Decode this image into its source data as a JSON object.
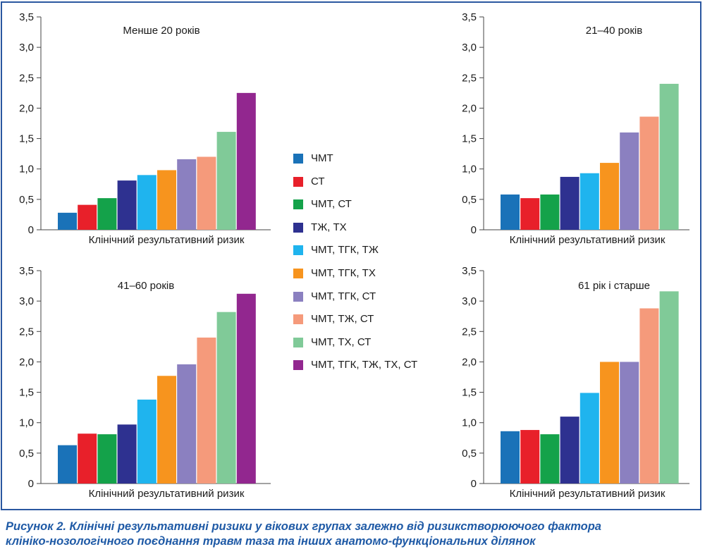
{
  "colors": {
    "frame": "#2a57a0",
    "caption": "#1f5aa6",
    "series": [
      "#1a72b8",
      "#e8202a",
      "#14a24a",
      "#2e3190",
      "#1fb4ee",
      "#f7941e",
      "#8b80c0",
      "#f59a7b",
      "#80ca98",
      "#92278f"
    ]
  },
  "legend": [
    "ЧМТ",
    "СТ",
    "ЧМТ, СТ",
    "ТЖ, ТХ",
    "ЧМТ, ТГК, ТЖ",
    "ЧМТ, ТГК, ТХ",
    "ЧМТ, ТГК, СТ",
    "ЧМТ, ТЖ, СТ",
    "ЧМТ, ТХ, СТ",
    "ЧМТ, ТГК, ТЖ, ТХ, СТ"
  ],
  "chart_data": [
    {
      "type": "bar",
      "title": "Менше 20 років",
      "xlabel": "Клінічний результативний ризик",
      "ylabel": "",
      "ylim": [
        0,
        3.5
      ],
      "yticks": [
        "0",
        "0,5",
        "1,0",
        "1,5",
        "2,0",
        "2,5",
        "3,0",
        "3,5"
      ],
      "grid": false,
      "values": [
        0.28,
        0.41,
        0.52,
        0.81,
        0.9,
        0.98,
        1.16,
        1.2,
        1.61,
        2.25
      ]
    },
    {
      "type": "bar",
      "title": "21–40 років",
      "xlabel": "Клінічний результативний ризик",
      "ylabel": "",
      "ylim": [
        0,
        3.5
      ],
      "yticks": [
        "0",
        "0,5",
        "1,0",
        "1,5",
        "2,0",
        "2,5",
        "3,0",
        "3,5"
      ],
      "grid": false,
      "values": [
        0.58,
        0.52,
        0.58,
        0.87,
        0.93,
        1.1,
        1.6,
        1.86,
        2.4
      ]
    },
    {
      "type": "bar",
      "title": "41–60 років",
      "xlabel": "Клінічний результативний ризик",
      "ylabel": "",
      "ylim": [
        0,
        3.5
      ],
      "yticks": [
        "0",
        "0,5",
        "1,0",
        "1,5",
        "2,0",
        "2,5",
        "3,0",
        "3,5"
      ],
      "grid": false,
      "values": [
        0.63,
        0.82,
        0.81,
        0.97,
        1.38,
        1.77,
        1.96,
        2.4,
        2.82,
        3.12
      ]
    },
    {
      "type": "bar",
      "title": "61 рік і старше",
      "xlabel": "Клінічний результативний ризик",
      "ylabel": "",
      "ylim": [
        0,
        3.5
      ],
      "yticks": [
        "0",
        "0,5",
        "1,0",
        "1,5",
        "2,0",
        "2,5",
        "3,0",
        "3,5"
      ],
      "grid": false,
      "values": [
        0.86,
        0.88,
        0.81,
        1.1,
        1.49,
        2.0,
        2.0,
        2.88,
        3.16
      ]
    }
  ],
  "caption": {
    "line1": "Рисунок 2. Клінічні результативні ризики у вікових групах залежно від ризикстворюючого фактора",
    "line2": "клініко-нозологічного поєднання травм таза та інших анатомо-функціональних ділянок"
  }
}
